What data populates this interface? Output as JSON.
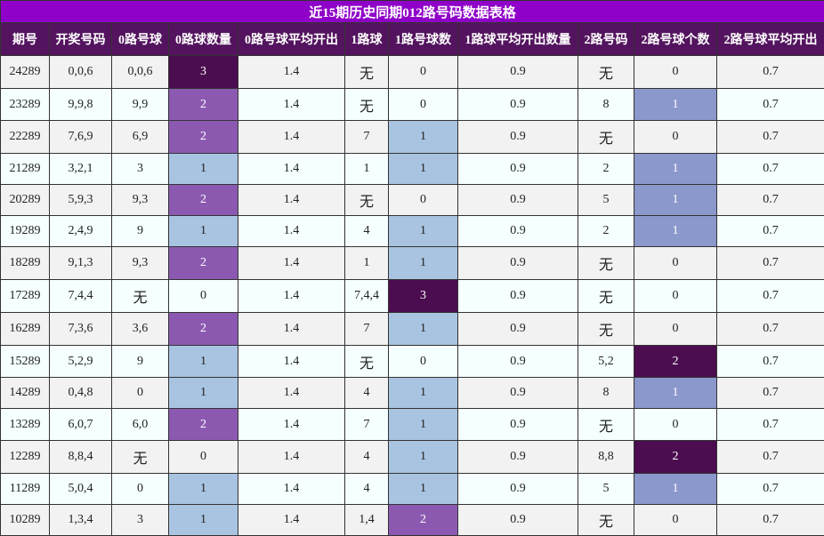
{
  "title": "近15期历史同期012路号码数据表格",
  "headers": [
    "期号",
    "开奖号码",
    "0路号球",
    "0路球数量",
    "0路号球平均开出",
    "1路球",
    "1路号球数",
    "1路球平均开出数量",
    "2路号码",
    "2路号球个数",
    "2路号球平均开出"
  ],
  "colors": {
    "title_bg": "#8f00c8",
    "header_bg": "#53135e",
    "count_0": "#4b0d4f",
    "count_2": "#8b5ab0",
    "count_1_blue": "#a8c4e0",
    "count_1_periwinkle": "#8b98cc"
  },
  "rows": [
    [
      "24289",
      "0,0,6",
      "0,0,6",
      "3",
      "1.4",
      "无",
      "0",
      "0.9",
      "无",
      "0",
      "0.7"
    ],
    [
      "23289",
      "9,9,8",
      "9,9",
      "2",
      "1.4",
      "无",
      "0",
      "0.9",
      "8",
      "1",
      "0.7"
    ],
    [
      "22289",
      "7,6,9",
      "6,9",
      "2",
      "1.4",
      "7",
      "1",
      "0.9",
      "无",
      "0",
      "0.7"
    ],
    [
      "21289",
      "3,2,1",
      "3",
      "1",
      "1.4",
      "1",
      "1",
      "0.9",
      "2",
      "1",
      "0.7"
    ],
    [
      "20289",
      "5,9,3",
      "9,3",
      "2",
      "1.4",
      "无",
      "0",
      "0.9",
      "5",
      "1",
      "0.7"
    ],
    [
      "19289",
      "2,4,9",
      "9",
      "1",
      "1.4",
      "4",
      "1",
      "0.9",
      "2",
      "1",
      "0.7"
    ],
    [
      "18289",
      "9,1,3",
      "9,3",
      "2",
      "1.4",
      "1",
      "1",
      "0.9",
      "无",
      "0",
      "0.7"
    ],
    [
      "17289",
      "7,4,4",
      "无",
      "0",
      "1.4",
      "7,4,4",
      "3",
      "0.9",
      "无",
      "0",
      "0.7"
    ],
    [
      "16289",
      "7,3,6",
      "3,6",
      "2",
      "1.4",
      "7",
      "1",
      "0.9",
      "无",
      "0",
      "0.7"
    ],
    [
      "15289",
      "5,2,9",
      "9",
      "1",
      "1.4",
      "无",
      "0",
      "0.9",
      "5,2",
      "2",
      "0.7"
    ],
    [
      "14289",
      "0,4,8",
      "0",
      "1",
      "1.4",
      "4",
      "1",
      "0.9",
      "8",
      "1",
      "0.7"
    ],
    [
      "13289",
      "6,0,7",
      "6,0",
      "2",
      "1.4",
      "7",
      "1",
      "0.9",
      "无",
      "0",
      "0.7"
    ],
    [
      "12289",
      "8,8,4",
      "无",
      "0",
      "1.4",
      "4",
      "1",
      "0.9",
      "8,8",
      "2",
      "0.7"
    ],
    [
      "11289",
      "5,0,4",
      "0",
      "1",
      "1.4",
      "4",
      "1",
      "0.9",
      "5",
      "1",
      "0.7"
    ],
    [
      "10289",
      "1,3,4",
      "3",
      "1",
      "1.4",
      "1,4",
      "2",
      "0.9",
      "无",
      "0",
      "0.7"
    ]
  ]
}
